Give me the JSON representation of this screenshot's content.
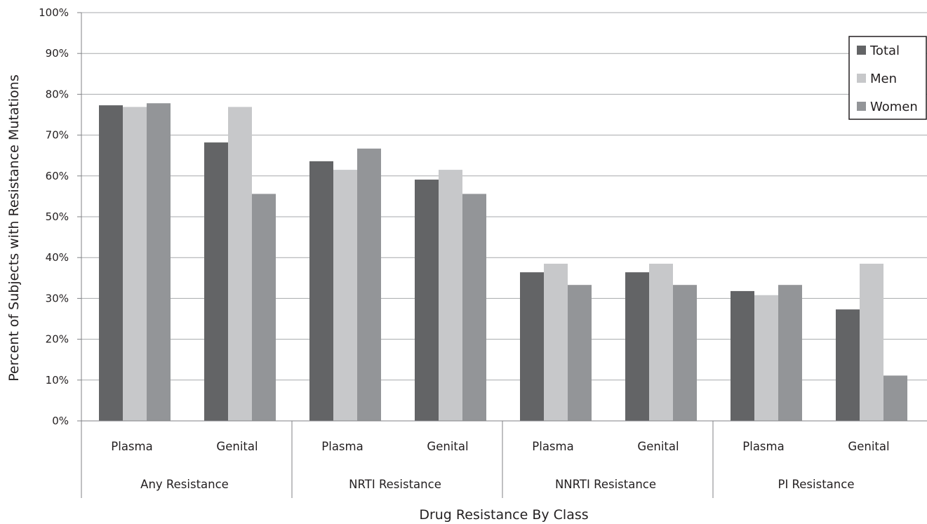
{
  "chart_data": {
    "type": "bar",
    "xlabel": "Drug Resistance By Class",
    "ylabel": "Percent of Subjects with Resistance Mutations",
    "ylim": [
      0,
      100
    ],
    "yticks": [
      0,
      10,
      20,
      30,
      40,
      50,
      60,
      70,
      80,
      90,
      100
    ],
    "ytick_format": "{v}%",
    "grid": "horizontal",
    "legend_position": "top-right",
    "groups": [
      {
        "label": "Any Resistance",
        "subcategories": [
          "Plasma",
          "Genital"
        ]
      },
      {
        "label": "NRTI Resistance",
        "subcategories": [
          "Plasma",
          "Genital"
        ]
      },
      {
        "label": "NNRTI Resistance",
        "subcategories": [
          "Plasma",
          "Genital"
        ]
      },
      {
        "label": "PI Resistance",
        "subcategories": [
          "Plasma",
          "Genital"
        ]
      }
    ],
    "categories": [
      "Plasma",
      "Genital",
      "Plasma",
      "Genital",
      "Plasma",
      "Genital",
      "Plasma",
      "Genital"
    ],
    "series": [
      {
        "name": "Total",
        "color": "#636466",
        "values": [
          77.3,
          68.2,
          63.6,
          59.1,
          36.4,
          36.4,
          31.8,
          27.3
        ]
      },
      {
        "name": "Men",
        "color": "#c7c8ca",
        "values": [
          76.9,
          76.9,
          61.5,
          61.5,
          38.5,
          38.5,
          30.8,
          38.5
        ]
      },
      {
        "name": "Women",
        "color": "#939598",
        "values": [
          77.8,
          55.6,
          66.7,
          55.6,
          33.3,
          33.3,
          33.3,
          11.1
        ]
      }
    ]
  }
}
